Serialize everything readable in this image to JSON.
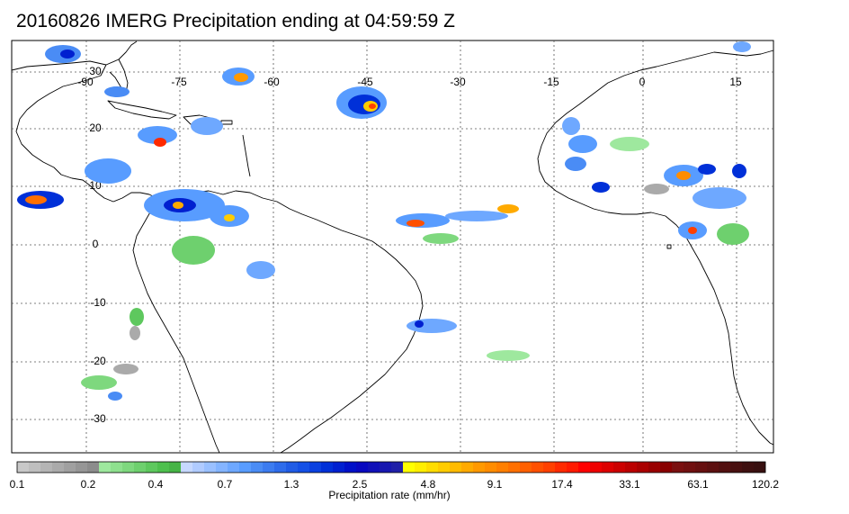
{
  "title": "20160826 IMERG Precipitation ending at 04:59:59 Z",
  "map": {
    "lon_labels": [
      "-90",
      "-75",
      "-60",
      "-45",
      "-30",
      "-15",
      "0",
      "15"
    ],
    "lat_labels": [
      "30",
      "20",
      "10",
      "0",
      "-10",
      "-20",
      "-30"
    ],
    "grid": "dotted",
    "coastline_color": "#000000"
  },
  "colorbar": {
    "title": "Precipitation rate (mm/hr)",
    "tick_labels": [
      "0.1",
      "0.2",
      "0.4",
      "0.7",
      "1.3",
      "2.5",
      "4.8",
      "9.1",
      "17.4",
      "33.1",
      "63.1",
      "120.2"
    ],
    "colors": [
      "#c8c8c8",
      "#bebebe",
      "#b4b4b4",
      "#aaaaaa",
      "#a0a0a0",
      "#969696",
      "#8c8c8c",
      "#9ee89e",
      "#8ee08e",
      "#7ed87e",
      "#6ed06e",
      "#5ec85e",
      "#4ec04e",
      "#46b446",
      "#c6d8ff",
      "#b0cbff",
      "#9ac0ff",
      "#84b4ff",
      "#6ea8ff",
      "#589cff",
      "#4a8cf5",
      "#3c7cf0",
      "#2e6ceb",
      "#205ce6",
      "#1450e6",
      "#0a40e0",
      "#0030d8",
      "#0020d0",
      "#0010c8",
      "#0808c0",
      "#1010b8",
      "#1818b0",
      "#2020a8",
      "#ffff00",
      "#ffee00",
      "#ffdd00",
      "#ffcc00",
      "#ffbb00",
      "#ffaa00",
      "#ff9900",
      "#ff8c00",
      "#ff7f00",
      "#ff7000",
      "#ff6000",
      "#ff5000",
      "#ff4000",
      "#ff2a00",
      "#ff1a00",
      "#ff0000",
      "#ee0000",
      "#dd0000",
      "#cc0000",
      "#bb0000",
      "#aa0000",
      "#990000",
      "#880000",
      "#7a1010",
      "#701010",
      "#661010",
      "#5c1010",
      "#521010",
      "#481010",
      "#3e1010",
      "#381010"
    ]
  }
}
